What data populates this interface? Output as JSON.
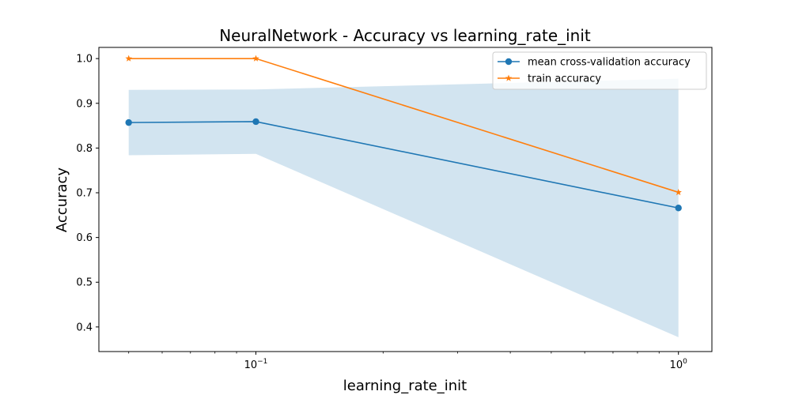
{
  "chart_data": {
    "type": "line",
    "title": "NeuralNetwork - Accuracy vs learning_rate_init",
    "xlabel": "learning_rate_init",
    "ylabel": "Accuracy",
    "xscale": "log",
    "xlim": [
      0.0425,
      1.2
    ],
    "ylim": [
      0.345,
      1.025
    ],
    "x": [
      0.05,
      0.1,
      1.0
    ],
    "xticks_major": [
      {
        "value": 0.1,
        "base": "10",
        "exp": "−1"
      },
      {
        "value": 1.0,
        "base": "10",
        "exp": "0"
      }
    ],
    "yticks": [
      "0.4",
      "0.5",
      "0.6",
      "0.7",
      "0.8",
      "0.9",
      "1.0"
    ],
    "series": [
      {
        "name": "mean cross-validation accuracy",
        "values": [
          0.857,
          0.859,
          0.666
        ],
        "color": "#1f77b4",
        "marker": "circle"
      },
      {
        "name": "train accuracy",
        "values": [
          1.0,
          1.0,
          0.701
        ],
        "color": "#ff7f0e",
        "marker": "star"
      }
    ],
    "band": {
      "series": "mean cross-validation accuracy",
      "lower": [
        0.784,
        0.787,
        0.377
      ],
      "upper": [
        0.93,
        0.931,
        0.955
      ],
      "color": "#1f77b4",
      "opacity": 0.2
    },
    "legend_position": "top-right",
    "grid": false
  }
}
